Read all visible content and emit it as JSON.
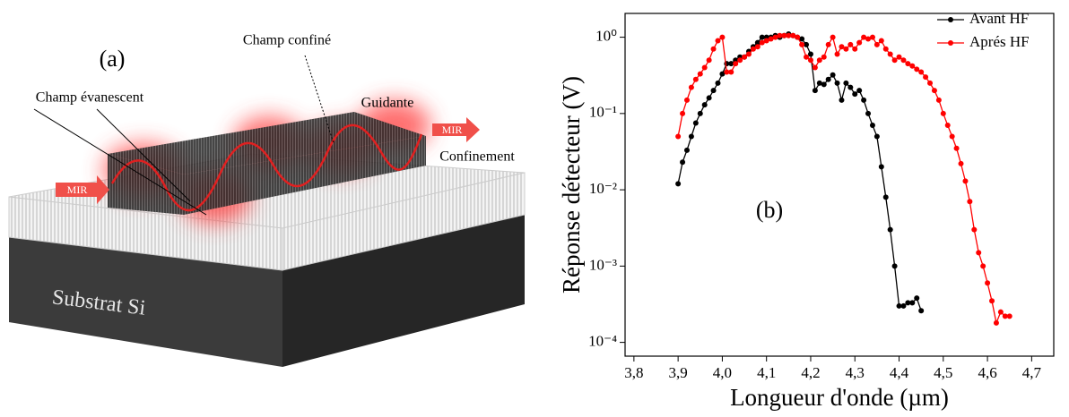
{
  "diagram": {
    "panel_label": "(a)",
    "labels": [
      "Champ confiné",
      "Guidante",
      "Champ évanescent",
      "MIR",
      "MIR",
      "Confinement",
      "Substrat Si"
    ]
  },
  "chart_data": {
    "type": "line",
    "annotation": "(b)",
    "x_label": "Longueur d'onde (µm)",
    "y_label": "Réponse détecteur (V)",
    "log_y": true,
    "legend": "upper right",
    "x": [
      3.9,
      3.91,
      3.92,
      3.93,
      3.94,
      3.95,
      3.96,
      3.97,
      3.98,
      3.99,
      4.0,
      4.01,
      4.02,
      4.03,
      4.04,
      4.05,
      4.06,
      4.07,
      4.08,
      4.09,
      4.1,
      4.11,
      4.12,
      4.13,
      4.14,
      4.15,
      4.16,
      4.17,
      4.18,
      4.19,
      4.2,
      4.21,
      4.22,
      4.23,
      4.24,
      4.25,
      4.26,
      4.27,
      4.28,
      4.29,
      4.3,
      4.31,
      4.32,
      4.33,
      4.34,
      4.35,
      4.36,
      4.37,
      4.38,
      4.39,
      4.4,
      4.41,
      4.42,
      4.43,
      4.44,
      4.45,
      4.46,
      4.47,
      4.48,
      4.49,
      4.5,
      4.51,
      4.52,
      4.53,
      4.54,
      4.55,
      4.56,
      4.57,
      4.58,
      4.59,
      4.6,
      4.61,
      4.62,
      4.63,
      4.64,
      4.65
    ],
    "series": [
      {
        "name": "Avant HF",
        "color": "#000000",
        "values": [
          0.012,
          0.023,
          0.033,
          0.05,
          0.075,
          0.1,
          0.13,
          0.16,
          0.2,
          0.25,
          0.33,
          0.45,
          0.45,
          0.5,
          0.55,
          0.55,
          0.65,
          0.75,
          0.85,
          1.0,
          1.0,
          1.0,
          1.05,
          1.0,
          1.05,
          1.1,
          1.05,
          1.0,
          0.95,
          0.8,
          0.6,
          0.2,
          0.25,
          0.24,
          0.28,
          0.32,
          0.25,
          0.15,
          0.25,
          0.22,
          0.18,
          0.2,
          0.15,
          0.1,
          0.07,
          0.05,
          0.02,
          0.008,
          0.003,
          0.001,
          0.0003,
          0.0003,
          0.00033,
          0.00033,
          0.00038,
          0.00026,
          null,
          null,
          null,
          null,
          null,
          null,
          null,
          null,
          null,
          null,
          null,
          null,
          null,
          null,
          null,
          null,
          null,
          null,
          null,
          null
        ]
      },
      {
        "name": "Aprés HF",
        "color": "#ff0000",
        "values": [
          0.05,
          0.1,
          0.15,
          0.22,
          0.28,
          0.33,
          0.4,
          0.5,
          0.7,
          0.9,
          1.0,
          0.35,
          0.35,
          0.45,
          0.5,
          0.55,
          0.6,
          0.7,
          0.75,
          0.85,
          0.9,
          0.95,
          1.0,
          1.05,
          1.05,
          1.05,
          1.05,
          1.0,
          0.8,
          0.55,
          0.5,
          0.4,
          0.5,
          0.55,
          0.8,
          1.0,
          0.6,
          0.75,
          0.7,
          0.8,
          0.7,
          0.85,
          1.0,
          0.95,
          1.0,
          0.8,
          0.9,
          0.7,
          0.6,
          0.5,
          0.55,
          0.5,
          0.45,
          0.42,
          0.38,
          0.35,
          0.3,
          0.25,
          0.2,
          0.15,
          0.1,
          0.07,
          0.05,
          0.035,
          0.022,
          0.013,
          0.007,
          0.003,
          0.0015,
          0.001,
          0.0006,
          0.00035,
          0.00018,
          0.00025,
          0.00022,
          0.00022
        ]
      }
    ],
    "xlim": [
      3.78,
      4.75
    ],
    "xticks": [
      {
        "value": 3.8,
        "label": "3,8"
      },
      {
        "value": 3.9,
        "label": "3,9"
      },
      {
        "value": 4.0,
        "label": "4,0"
      },
      {
        "value": 4.1,
        "label": "4,1"
      },
      {
        "value": 4.2,
        "label": "4,2"
      },
      {
        "value": 4.3,
        "label": "4,3"
      },
      {
        "value": 4.4,
        "label": "4,4"
      },
      {
        "value": 4.5,
        "label": "4,5"
      },
      {
        "value": 4.6,
        "label": "4,6"
      },
      {
        "value": 4.7,
        "label": "4,7"
      }
    ],
    "ylim": [
      6.6e-05,
      2.05
    ],
    "yticks": [
      {
        "value": 0.0001,
        "label": "10⁻⁴"
      },
      {
        "value": 0.001,
        "label": "10⁻³"
      },
      {
        "value": 0.01,
        "label": "10⁻²"
      },
      {
        "value": 0.1,
        "label": "10⁻¹"
      },
      {
        "value": 1,
        "label": "10⁰"
      }
    ]
  }
}
